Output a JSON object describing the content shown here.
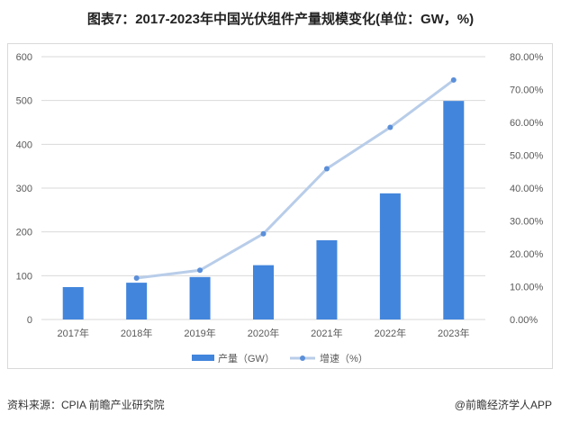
{
  "title": "图表7：2017-2023年中国光伏组件产量规模变化(单位：GW，%)",
  "source": "资料来源：CPIA 前瞻产业研究院",
  "credit": "@前瞻经济学人APP",
  "colors": {
    "bar": "#4285dc",
    "line": "#b8cde9",
    "marker": "#5b8fd9"
  },
  "chart_data": {
    "type": "bar+line",
    "categories": [
      "2017年",
      "2018年",
      "2019年",
      "2020年",
      "2021年",
      "2022年",
      "2023年"
    ],
    "series": [
      {
        "name": "产量（GW）",
        "type": "bar",
        "axis": "left",
        "values": [
          74,
          84,
          97,
          124,
          181,
          288,
          499
        ]
      },
      {
        "name": "增速（%）",
        "type": "line",
        "axis": "right",
        "values": [
          null,
          12.6,
          15.0,
          26.1,
          45.9,
          58.5,
          72.9
        ]
      }
    ],
    "ylim": [
      0,
      600
    ],
    "yticks": [
      "0",
      "100",
      "200",
      "300",
      "400",
      "500",
      "600"
    ],
    "y2lim": [
      0,
      80
    ],
    "y2ticks": [
      "0.00%",
      "10.00%",
      "20.00%",
      "30.00%",
      "40.00%",
      "50.00%",
      "60.00%",
      "70.00%",
      "80.00%"
    ],
    "grid": true,
    "legend": "bottom"
  }
}
